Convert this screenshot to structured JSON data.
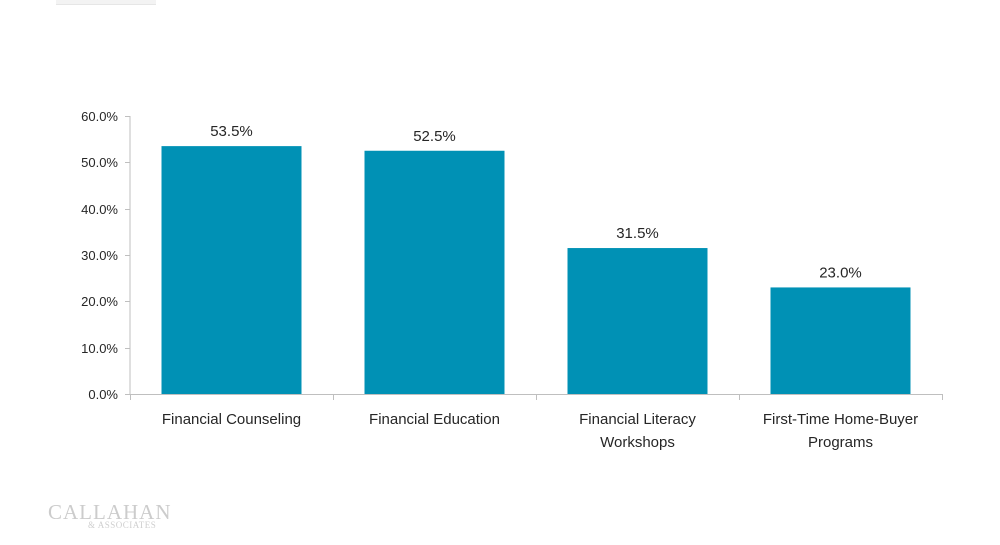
{
  "chart_data": {
    "type": "bar",
    "title": "",
    "xlabel": "",
    "ylabel": "",
    "categories": [
      [
        "Financial Counseling"
      ],
      [
        "Financial Education"
      ],
      [
        "Financial Literacy",
        "Workshops"
      ],
      [
        "First-Time Home-Buyer",
        "Programs"
      ]
    ],
    "values": [
      53.5,
      52.5,
      31.5,
      23.0
    ],
    "data_labels": [
      "53.5%",
      "52.5%",
      "31.5%",
      "23.0%"
    ],
    "ylim": [
      0,
      60
    ],
    "yticks": [
      0,
      10,
      20,
      30,
      40,
      50,
      60
    ],
    "ytick_labels": [
      "0.0%",
      "10.0%",
      "20.0%",
      "30.0%",
      "40.0%",
      "50.0%",
      "60.0%"
    ],
    "grid": false,
    "legend": "none",
    "colors": {
      "bar": "#0091b5",
      "axis": "#bfbfbf",
      "text": "#262626"
    }
  },
  "logo": {
    "main": "CALLAHAN",
    "sub": "& ASSOCIATES"
  }
}
